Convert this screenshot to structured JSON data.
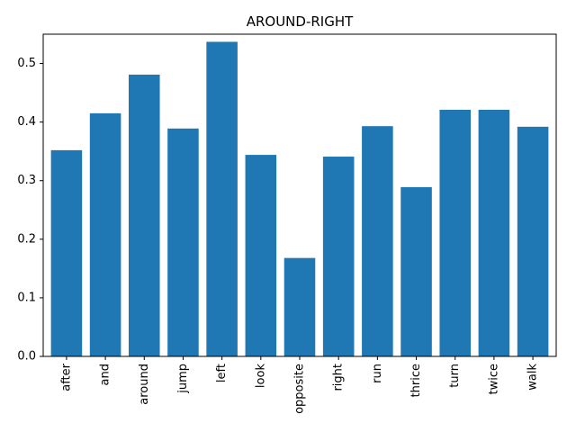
{
  "chart_data": {
    "type": "bar",
    "title": "AROUND-RIGHT",
    "xlabel": "",
    "ylabel": "",
    "categories": [
      "after",
      "and",
      "around",
      "jump",
      "left",
      "look",
      "opposite",
      "right",
      "run",
      "thrice",
      "turn",
      "twice",
      "walk"
    ],
    "values": [
      0.352,
      0.415,
      0.481,
      0.389,
      0.537,
      0.344,
      0.168,
      0.341,
      0.393,
      0.289,
      0.421,
      0.421,
      0.392
    ],
    "ylim": [
      0,
      0.55
    ],
    "yticks": [
      0.0,
      0.1,
      0.2,
      0.3,
      0.4,
      0.5
    ],
    "ytick_labels": [
      "0.0",
      "0.1",
      "0.2",
      "0.3",
      "0.4",
      "0.5"
    ],
    "grid": false,
    "bar_color": "#1f77b4"
  }
}
